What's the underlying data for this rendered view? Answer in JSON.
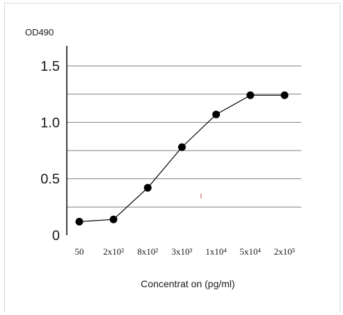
{
  "chart_data": {
    "type": "line",
    "title": "",
    "ylabel": "OD490",
    "xlabel": "Concentrat on (pg/ml)",
    "categories": [
      "50",
      "2x10²",
      "8x10²",
      "3x10³",
      "1x10⁴",
      "5x10⁴",
      "2x10⁵"
    ],
    "y_ticks": [
      "0",
      "0.5",
      "1.0",
      "1.5"
    ],
    "y_tick_values": [
      0,
      0.5,
      1.0,
      1.5
    ],
    "ylim": [
      0,
      1.6
    ],
    "grid": true,
    "series": [
      {
        "values": [
          0.12,
          0.14,
          0.42,
          0.78,
          1.07,
          1.24,
          1.24
        ]
      }
    ],
    "colors": {
      "line": "#000000",
      "marker": "#000000",
      "grid": "#7f7f7f"
    }
  }
}
